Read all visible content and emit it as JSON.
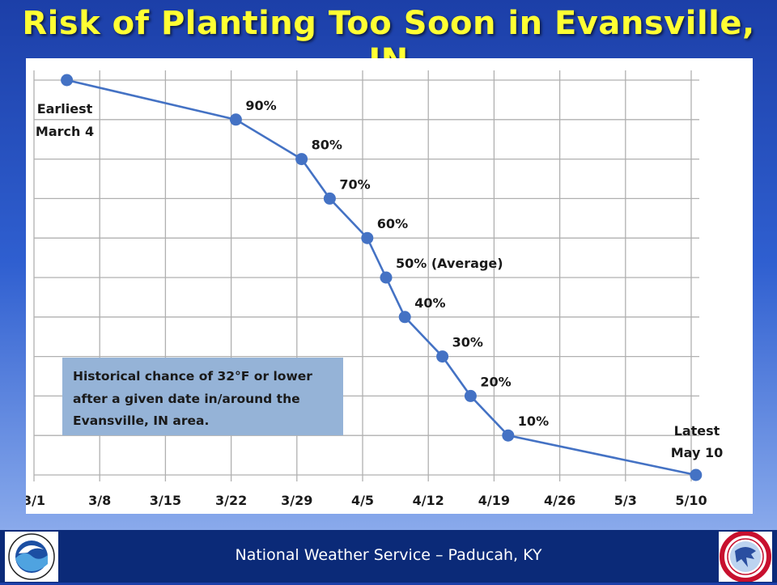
{
  "title": "Risk of Planting Too Soon in Evansville, IN",
  "footer": {
    "text": "National Weather Service – Paducah, KY"
  },
  "logos": {
    "left": "noaa-logo-icon",
    "right": "nws-logo-icon"
  },
  "colors": {
    "title": "#ffff33",
    "series": "#4472c4",
    "background": "#2f5fd0",
    "footer": "#0b2a78",
    "annotation_box": "#95b3d7"
  },
  "chart_data": {
    "type": "line",
    "title": "",
    "xlabel": "",
    "ylabel": "",
    "x_ticks": [
      "3/1",
      "3/8",
      "3/15",
      "3/22",
      "3/29",
      "4/5",
      "4/12",
      "4/19",
      "4/26",
      "5/3",
      "5/10"
    ],
    "x_tick_days": [
      0,
      7,
      14,
      21,
      28,
      35,
      42,
      49,
      56,
      63,
      70
    ],
    "xlim": [
      0,
      70
    ],
    "ylim": [
      0,
      100
    ],
    "y_ticks_shown": false,
    "grid": true,
    "series": [
      {
        "points": [
          {
            "date": "3/4",
            "day": 3.5,
            "chance": 100,
            "label": ""
          },
          {
            "date": "3/22",
            "day": 21.5,
            "chance": 90,
            "label": "90%"
          },
          {
            "date": "3/29",
            "day": 28.5,
            "chance": 80,
            "label": "80%"
          },
          {
            "date": "4/1",
            "day": 31.5,
            "chance": 70,
            "label": "70%"
          },
          {
            "date": "4/5",
            "day": 35.5,
            "chance": 60,
            "label": "60%"
          },
          {
            "date": "4/7",
            "day": 37.5,
            "chance": 50,
            "label": "50% (Average)"
          },
          {
            "date": "4/9",
            "day": 39.5,
            "chance": 40,
            "label": "40%"
          },
          {
            "date": "4/13",
            "day": 43.5,
            "chance": 30,
            "label": "30%"
          },
          {
            "date": "4/16",
            "day": 46.5,
            "chance": 20,
            "label": "20%"
          },
          {
            "date": "4/20",
            "day": 50.5,
            "chance": 10,
            "label": "10%"
          },
          {
            "date": "5/10",
            "day": 70.5,
            "chance": 0,
            "label": ""
          }
        ]
      }
    ],
    "annotations": {
      "earliest": [
        "Earliest",
        "March 4"
      ],
      "latest": [
        "Latest",
        "May 10"
      ],
      "note": [
        "Historical chance of 32°F or lower",
        "after a given date in/around the",
        "Evansville, IN area."
      ]
    }
  }
}
